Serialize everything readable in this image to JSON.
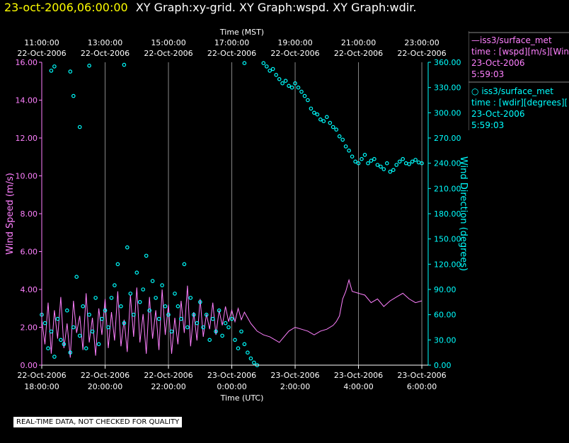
{
  "header": {
    "date": "23-oct-2006,06:00:00",
    "titles": "XY Graph:xy-grid.  XY Graph:wspd.  XY Graph:wdir."
  },
  "legend": [
    {
      "prefix": "—",
      "name": "iss3/surface_met",
      "line1": "time : [wspd][m/s][Win",
      "line2": "23-Oct-2006",
      "line3": "5:59:03",
      "color": "#ff80ff"
    },
    {
      "prefix": "○",
      "name": "iss3/surface_met",
      "line1": "time : [wdir][degrees][",
      "line2": "23-Oct-2006",
      "line3": "5:59:03",
      "color": "#00ffff"
    }
  ],
  "disclaimer": "REAL-TIME DATA, NOT CHECKED FOR QUALITY",
  "chart_data": {
    "type": "line",
    "top_axis_title": "Time (MST)",
    "bottom_axis_title": "Time (UTC)",
    "xlim_hours_utc": [
      18,
      30.2
    ],
    "top_ticks": [
      {
        "h": 18,
        "l1": "11:00:00",
        "l2": "22-Oct-2006"
      },
      {
        "h": 20,
        "l1": "13:00:00",
        "l2": "22-Oct-2006"
      },
      {
        "h": 22,
        "l1": "15:00:00",
        "l2": "22-Oct-2006"
      },
      {
        "h": 24,
        "l1": "17:00:00",
        "l2": "22-Oct-2006"
      },
      {
        "h": 26,
        "l1": "19:00:00",
        "l2": "22-Oct-2006"
      },
      {
        "h": 28,
        "l1": "21:00:00",
        "l2": "22-Oct-2006"
      },
      {
        "h": 30,
        "l1": "23:00:00",
        "l2": "22-Oct-2006"
      }
    ],
    "bottom_ticks": [
      {
        "h": 18,
        "l1": "22-Oct-2006",
        "l2": "18:00:00"
      },
      {
        "h": 20,
        "l1": "22-Oct-2006",
        "l2": "20:00:00"
      },
      {
        "h": 22,
        "l1": "22-Oct-2006",
        "l2": "22:00:00"
      },
      {
        "h": 24,
        "l1": "23-Oct-2006",
        "l2": "0:00:00"
      },
      {
        "h": 26,
        "l1": "23-Oct-2006",
        "l2": "2:00:00"
      },
      {
        "h": 28,
        "l1": "23-Oct-2006",
        "l2": "4:00:00"
      },
      {
        "h": 30,
        "l1": "23-Oct-2006",
        "l2": "6:00:00"
      }
    ],
    "left_axis": {
      "label": "Wind Speed (m/s)",
      "min": 0,
      "max": 16,
      "ticks": [
        "0.00",
        "2.00",
        "4.00",
        "6.00",
        "8.00",
        "10.00",
        "12.00",
        "14.00",
        "16.00"
      ],
      "color": "#ff80ff"
    },
    "right_axis": {
      "label": "Wind Direction (degrees)",
      "min": 0,
      "max": 360,
      "ticks": [
        "0.00",
        "30.00",
        "60.00",
        "90.00",
        "120.00",
        "150.00",
        "180.00",
        "210.00",
        "240.00",
        "270.00",
        "300.00",
        "330.00",
        "360.00"
      ],
      "color": "#00ffff"
    },
    "grid": true,
    "series": [
      {
        "name": "iss3/surface_met",
        "type": "line",
        "color": "#ff80ff",
        "axis": "left",
        "points": [
          [
            18.0,
            2.4
          ],
          [
            18.1,
            1.1
          ],
          [
            18.2,
            3.3
          ],
          [
            18.3,
            0.6
          ],
          [
            18.4,
            2.9
          ],
          [
            18.5,
            1.4
          ],
          [
            18.6,
            3.6
          ],
          [
            18.7,
            0.9
          ],
          [
            18.8,
            2.2
          ],
          [
            18.9,
            0.4
          ],
          [
            19.0,
            3.4
          ],
          [
            19.1,
            1.7
          ],
          [
            19.2,
            2.6
          ],
          [
            19.3,
            0.8
          ],
          [
            19.4,
            3.8
          ],
          [
            19.5,
            1.2
          ],
          [
            19.6,
            2.5
          ],
          [
            19.7,
            0.5
          ],
          [
            19.8,
            3.0
          ],
          [
            19.9,
            1.6
          ],
          [
            20.0,
            3.5
          ],
          [
            20.1,
            0.9
          ],
          [
            20.2,
            2.8
          ],
          [
            20.3,
            1.3
          ],
          [
            20.4,
            3.9
          ],
          [
            20.5,
            1.0
          ],
          [
            20.6,
            2.4
          ],
          [
            20.7,
            0.7
          ],
          [
            20.8,
            3.7
          ],
          [
            20.9,
            1.5
          ],
          [
            21.0,
            4.1
          ],
          [
            21.1,
            1.2
          ],
          [
            21.2,
            2.7
          ],
          [
            21.3,
            0.6
          ],
          [
            21.4,
            3.6
          ],
          [
            21.5,
            1.4
          ],
          [
            21.6,
            2.9
          ],
          [
            21.7,
            0.8
          ],
          [
            21.8,
            4.0
          ],
          [
            21.9,
            1.6
          ],
          [
            22.0,
            3.2
          ],
          [
            22.1,
            0.6
          ],
          [
            22.2,
            2.5
          ],
          [
            22.3,
            1.1
          ],
          [
            22.4,
            3.4
          ],
          [
            22.5,
            1.7
          ],
          [
            22.6,
            4.2
          ],
          [
            22.7,
            1.0
          ],
          [
            22.8,
            2.8
          ],
          [
            22.9,
            1.3
          ],
          [
            23.0,
            3.5
          ],
          [
            23.1,
            1.5
          ],
          [
            23.2,
            2.7
          ],
          [
            23.3,
            1.9
          ],
          [
            23.4,
            3.3
          ],
          [
            23.5,
            1.6
          ],
          [
            23.6,
            2.9
          ],
          [
            23.7,
            2.1
          ],
          [
            23.8,
            3.1
          ],
          [
            23.9,
            2.3
          ],
          [
            24.0,
            2.9
          ],
          [
            24.1,
            2.3
          ],
          [
            24.2,
            3.0
          ],
          [
            24.3,
            2.4
          ],
          [
            24.4,
            2.8
          ],
          [
            24.5,
            2.5
          ],
          [
            24.6,
            2.2
          ],
          [
            24.7,
            2.0
          ],
          [
            24.8,
            1.8
          ],
          [
            24.9,
            1.7
          ],
          [
            25.0,
            1.6
          ],
          [
            25.2,
            1.5
          ],
          [
            25.4,
            1.3
          ],
          [
            25.5,
            1.2
          ],
          [
            25.6,
            1.4
          ],
          [
            25.8,
            1.8
          ],
          [
            26.0,
            2.0
          ],
          [
            26.2,
            1.9
          ],
          [
            26.4,
            1.8
          ],
          [
            26.6,
            1.6
          ],
          [
            26.8,
            1.8
          ],
          [
            27.0,
            1.9
          ],
          [
            27.2,
            2.1
          ],
          [
            27.3,
            2.3
          ],
          [
            27.4,
            2.6
          ],
          [
            27.5,
            3.5
          ],
          [
            27.6,
            3.9
          ],
          [
            27.7,
            4.5
          ],
          [
            27.8,
            3.9
          ],
          [
            28.0,
            3.8
          ],
          [
            28.2,
            3.7
          ],
          [
            28.4,
            3.3
          ],
          [
            28.6,
            3.5
          ],
          [
            28.8,
            3.1
          ],
          [
            29.0,
            3.4
          ],
          [
            29.2,
            3.6
          ],
          [
            29.4,
            3.8
          ],
          [
            29.6,
            3.5
          ],
          [
            29.8,
            3.3
          ],
          [
            30.0,
            3.4
          ]
        ]
      },
      {
        "name": "iss3/surface_met",
        "type": "scatter",
        "color": "#00ffff",
        "axis": "right",
        "points": [
          [
            18.0,
            60
          ],
          [
            18.1,
            50
          ],
          [
            18.2,
            20
          ],
          [
            18.3,
            40
          ],
          [
            18.4,
            10
          ],
          [
            18.5,
            55
          ],
          [
            18.6,
            30
          ],
          [
            18.7,
            25
          ],
          [
            18.8,
            65
          ],
          [
            18.9,
            15
          ],
          [
            19.0,
            45
          ],
          [
            19.1,
            105
          ],
          [
            19.2,
            35
          ],
          [
            19.3,
            70
          ],
          [
            19.4,
            20
          ],
          [
            19.5,
            60
          ],
          [
            19.6,
            40
          ],
          [
            19.7,
            80
          ],
          [
            19.8,
            25
          ],
          [
            19.9,
            55
          ],
          [
            20.0,
            65
          ],
          [
            20.1,
            45
          ],
          [
            20.2,
            80
          ],
          [
            20.3,
            95
          ],
          [
            20.4,
            120
          ],
          [
            20.5,
            70
          ],
          [
            20.6,
            50
          ],
          [
            20.7,
            140
          ],
          [
            20.8,
            85
          ],
          [
            20.9,
            60
          ],
          [
            21.0,
            110
          ],
          [
            21.1,
            75
          ],
          [
            21.2,
            90
          ],
          [
            21.3,
            130
          ],
          [
            21.4,
            65
          ],
          [
            21.5,
            100
          ],
          [
            21.6,
            80
          ],
          [
            21.7,
            55
          ],
          [
            21.8,
            95
          ],
          [
            21.9,
            70
          ],
          [
            22.0,
            60
          ],
          [
            22.1,
            40
          ],
          [
            22.2,
            85
          ],
          [
            22.3,
            70
          ],
          [
            22.4,
            55
          ],
          [
            22.5,
            120
          ],
          [
            22.6,
            45
          ],
          [
            22.7,
            80
          ],
          [
            22.8,
            60
          ],
          [
            22.9,
            50
          ],
          [
            23.0,
            75
          ],
          [
            23.1,
            45
          ],
          [
            23.2,
            60
          ],
          [
            23.3,
            30
          ],
          [
            23.4,
            55
          ],
          [
            23.5,
            40
          ],
          [
            23.6,
            65
          ],
          [
            23.7,
            35
          ],
          [
            23.8,
            50
          ],
          [
            23.9,
            45
          ],
          [
            24.0,
            55
          ],
          [
            24.1,
            30
          ],
          [
            24.2,
            20
          ],
          [
            24.3,
            40
          ],
          [
            24.4,
            25
          ],
          [
            24.5,
            15
          ],
          [
            24.6,
            8
          ],
          [
            24.7,
            3
          ],
          [
            24.8,
            0
          ],
          [
            18.3,
            350
          ],
          [
            18.4,
            355
          ],
          [
            18.9,
            349
          ],
          [
            19.0,
            320
          ],
          [
            19.2,
            283
          ],
          [
            19.5,
            356
          ],
          [
            20.6,
            357
          ],
          [
            24.4,
            359
          ],
          [
            25.0,
            359
          ],
          [
            25.1,
            355
          ],
          [
            25.2,
            350
          ],
          [
            25.3,
            352
          ],
          [
            25.4,
            345
          ],
          [
            25.5,
            340
          ],
          [
            25.6,
            335
          ],
          [
            25.7,
            338
          ],
          [
            25.8,
            332
          ],
          [
            25.9,
            330
          ],
          [
            26.0,
            335
          ],
          [
            26.1,
            330
          ],
          [
            26.2,
            325
          ],
          [
            26.3,
            320
          ],
          [
            26.4,
            315
          ],
          [
            26.5,
            305
          ],
          [
            26.6,
            300
          ],
          [
            26.7,
            298
          ],
          [
            26.8,
            292
          ],
          [
            26.9,
            290
          ],
          [
            27.0,
            295
          ],
          [
            27.1,
            288
          ],
          [
            27.2,
            283
          ],
          [
            27.3,
            280
          ],
          [
            27.4,
            272
          ],
          [
            27.5,
            268
          ],
          [
            27.6,
            260
          ],
          [
            27.7,
            255
          ],
          [
            27.8,
            248
          ],
          [
            27.9,
            242
          ],
          [
            28.0,
            240
          ],
          [
            28.1,
            245
          ],
          [
            28.2,
            250
          ],
          [
            28.3,
            240
          ],
          [
            28.4,
            243
          ],
          [
            28.5,
            245
          ],
          [
            28.6,
            238
          ],
          [
            28.7,
            236
          ],
          [
            28.8,
            233
          ],
          [
            28.9,
            240
          ],
          [
            29.0,
            230
          ],
          [
            29.1,
            232
          ],
          [
            29.2,
            238
          ],
          [
            29.3,
            242
          ],
          [
            29.4,
            245
          ],
          [
            29.5,
            240
          ],
          [
            29.6,
            239
          ],
          [
            29.7,
            242
          ],
          [
            29.8,
            244
          ],
          [
            29.9,
            241
          ],
          [
            30.0,
            240
          ]
        ]
      }
    ]
  }
}
